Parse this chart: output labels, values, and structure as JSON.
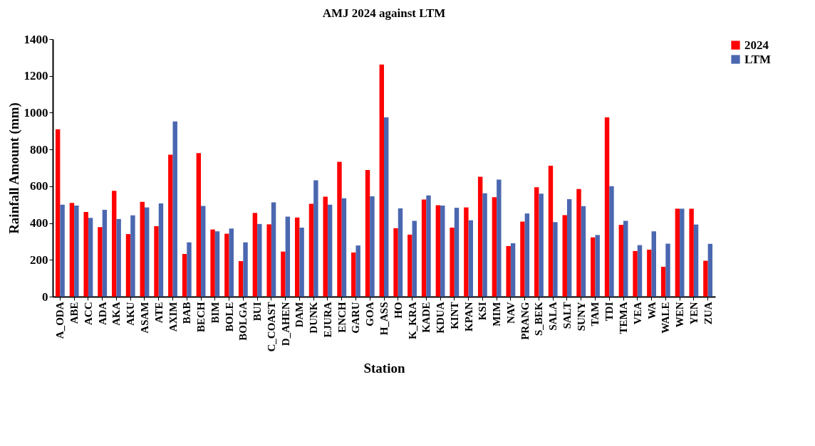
{
  "chart_data": {
    "type": "bar",
    "title": "AMJ 2024 against LTM",
    "xlabel": "Station",
    "ylabel": "Rainfall Amount (mm)",
    "categories": [
      "A_ODA",
      "ABE",
      "ACC",
      "ADA",
      "AKA",
      "AKU",
      "ASAM",
      "ATE",
      "AXIM",
      "BAB",
      "BECH",
      "BIM",
      "BOLE",
      "BOLGA",
      "BUI",
      "C_COAST",
      "D_AHEN",
      "DAM",
      "DUNK",
      "EJURA",
      "ENCH",
      "GARU",
      "GOA",
      "H_ASS",
      "HO",
      "K_KRA",
      "KADE",
      "KDUA",
      "KINT",
      "KPAN",
      "KSI",
      "MIM",
      "NAV",
      "PRANG",
      "S_BEK",
      "SALA",
      "SALT",
      "SUNY",
      "TAM",
      "TDI",
      "TEMA",
      "VEA",
      "WA",
      "WALE",
      "WEN",
      "YEN",
      "ZUA"
    ],
    "series": [
      {
        "name": "2024",
        "color": "#ff0000",
        "values": [
          910,
          510,
          460,
          378,
          575,
          340,
          515,
          383,
          772,
          232,
          780,
          365,
          342,
          193,
          455,
          393,
          245,
          430,
          505,
          543,
          733,
          240,
          688,
          1262,
          372,
          337,
          528,
          497,
          375,
          485,
          652,
          540,
          275,
          408,
          595,
          712,
          443,
          585,
          322,
          975,
          390,
          248,
          255,
          162,
          478,
          478,
          195
        ]
      },
      {
        "name": "LTM",
        "color": "#4a67b0",
        "values": [
          500,
          495,
          428,
          472,
          422,
          442,
          485,
          507,
          952,
          295,
          493,
          355,
          370,
          295,
          395,
          512,
          435,
          375,
          632,
          500,
          535,
          278,
          545,
          975,
          480,
          412,
          550,
          495,
          483,
          415,
          562,
          636,
          290,
          452,
          560,
          405,
          530,
          492,
          335,
          600,
          412,
          280,
          355,
          288,
          478,
          392,
          287
        ]
      }
    ],
    "ylim": [
      0,
      1400
    ],
    "yticks": [
      0,
      200,
      400,
      600,
      800,
      1000,
      1200,
      1400
    ],
    "grid": false,
    "legend": "right"
  }
}
